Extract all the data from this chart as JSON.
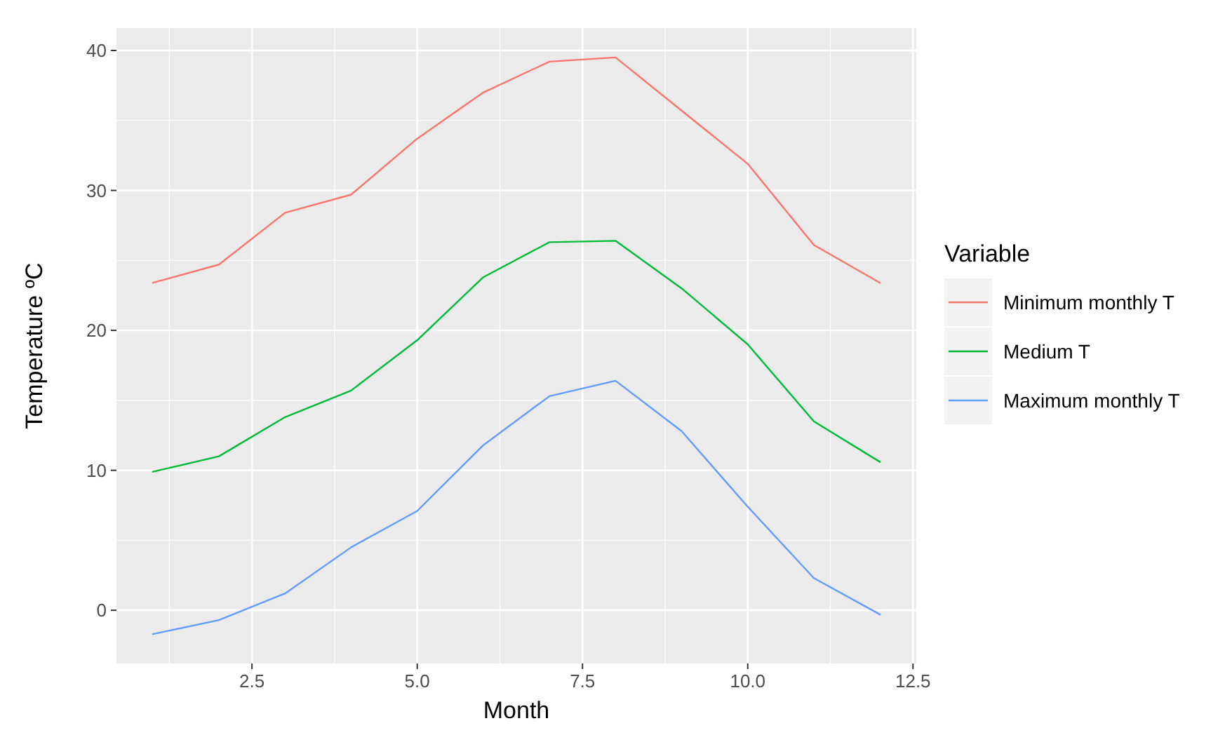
{
  "chart_data": {
    "type": "line",
    "xlabel": "Month",
    "ylabel": "Temperature ºC",
    "legend_title": "Variable",
    "legend": "right",
    "grid": true,
    "x": [
      1,
      2,
      3,
      4,
      5,
      6,
      7,
      8,
      9,
      10,
      11,
      12
    ],
    "xlim": [
      0.45,
      12.55
    ],
    "xticks": [
      {
        "value": 2.5,
        "label": "2.5"
      },
      {
        "value": 5,
        "label": "5.0"
      },
      {
        "value": 7.5,
        "label": "7.5"
      },
      {
        "value": 10,
        "label": "10.0"
      },
      {
        "value": 12.5,
        "label": "12.5"
      }
    ],
    "ylim": [
      -3.8,
      41.6
    ],
    "yticks": [
      0,
      10,
      20,
      30,
      40
    ],
    "series": [
      {
        "name": "Minimum monthly T",
        "color": "#f8766d",
        "values": [
          23.4,
          24.7,
          28.4,
          29.7,
          33.7,
          37.0,
          39.2,
          39.5,
          35.7,
          31.9,
          26.1,
          23.4
        ]
      },
      {
        "name": "Medium T",
        "color": "#00ba38",
        "values": [
          9.9,
          11.0,
          13.8,
          15.7,
          19.3,
          23.8,
          26.3,
          26.4,
          23.0,
          19.0,
          13.5,
          10.6
        ]
      },
      {
        "name": "Maximum monthly T",
        "color": "#619cff",
        "values": [
          -1.7,
          -0.7,
          1.2,
          4.5,
          7.1,
          11.8,
          15.3,
          16.4,
          12.8,
          7.4,
          2.3,
          -0.3
        ]
      }
    ]
  }
}
